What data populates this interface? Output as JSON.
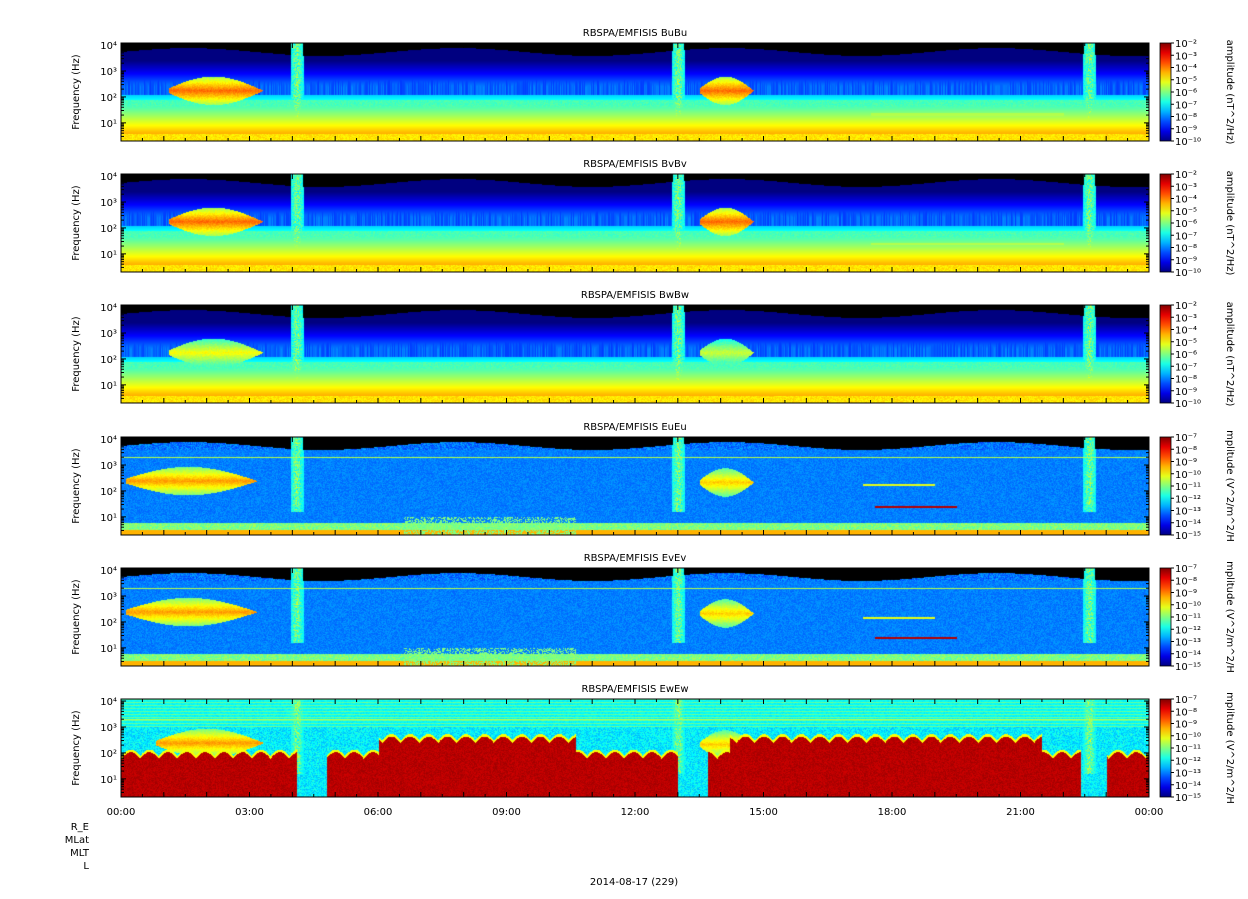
{
  "figure": {
    "date_label": "2014-08-17 (229)",
    "row_labels": [
      "R_E",
      "MLat",
      "MLT",
      "L"
    ]
  },
  "chart_data": [
    {
      "type": "heatmap",
      "title": "RBSPA/EMFISIS  BuBu",
      "ylabel": "Frequency (Hz)",
      "y_scale": "log",
      "ylim": [
        2,
        12000
      ],
      "yticks": [
        10,
        100,
        1000,
        10000
      ],
      "xlim": [
        "00:00",
        "24:00"
      ],
      "xticks": [
        "00:00",
        "03:00",
        "06:00",
        "09:00",
        "12:00",
        "15:00",
        "18:00",
        "21:00",
        "00:00"
      ],
      "colorbar": {
        "label": "amplitude (nT^2/Hz)",
        "scale": "log",
        "range_exp": [
          -10,
          -2
        ],
        "tick_exps": [
          -10,
          -9,
          -8,
          -7,
          -6,
          -5,
          -4,
          -3,
          -2
        ]
      },
      "features": {
        "type": "B",
        "chorus": [
          [
            1.1,
            3.9,
            180,
            0.9
          ],
          [
            13.5,
            15.1,
            180,
            0.9
          ]
        ],
        "bands": [
          [
            17.5,
            22.0,
            22,
            0.55
          ]
        ],
        "spikes": [
          4.1,
          13.0,
          22.6
        ],
        "eline": false,
        "bursts": false,
        "red": false
      }
    },
    {
      "type": "heatmap",
      "title": "RBSPA/EMFISIS  BvBv",
      "ylabel": "Frequency (Hz)",
      "y_scale": "log",
      "ylim": [
        2,
        12000
      ],
      "yticks": [
        10,
        100,
        1000,
        10000
      ],
      "xlim": [
        "00:00",
        "24:00"
      ],
      "xticks": [
        "00:00",
        "03:00",
        "06:00",
        "09:00",
        "12:00",
        "15:00",
        "18:00",
        "21:00",
        "00:00"
      ],
      "colorbar": {
        "label": "amplitude (nT^2/Hz)",
        "scale": "log",
        "range_exp": [
          -10,
          -2
        ],
        "tick_exps": [
          -10,
          -9,
          -8,
          -7,
          -6,
          -5,
          -4,
          -3,
          -2
        ]
      },
      "features": {
        "type": "B",
        "chorus": [
          [
            1.1,
            3.9,
            180,
            0.9
          ],
          [
            13.5,
            15.1,
            180,
            0.9
          ]
        ],
        "bands": [
          [
            17.5,
            22.0,
            25,
            0.55
          ]
        ],
        "spikes": [
          4.1,
          13.0,
          22.6
        ],
        "eline": false,
        "bursts": false,
        "red": false
      }
    },
    {
      "type": "heatmap",
      "title": "RBSPA/EMFISIS  BwBw",
      "ylabel": "Frequency (Hz)",
      "y_scale": "log",
      "ylim": [
        2,
        12000
      ],
      "yticks": [
        10,
        100,
        1000,
        10000
      ],
      "xlim": [
        "00:00",
        "24:00"
      ],
      "xticks": [
        "00:00",
        "03:00",
        "06:00",
        "09:00",
        "12:00",
        "15:00",
        "18:00",
        "21:00",
        "00:00"
      ],
      "colorbar": {
        "label": "amplitude (nT^2/Hz)",
        "scale": "log",
        "range_exp": [
          -10,
          -2
        ],
        "tick_exps": [
          -10,
          -9,
          -8,
          -7,
          -6,
          -5,
          -4,
          -3,
          -2
        ]
      },
      "features": {
        "type": "B",
        "chorus": [
          [
            1.1,
            3.9,
            180,
            0.75
          ],
          [
            13.5,
            15.1,
            180,
            0.7
          ]
        ],
        "bands": [],
        "spikes": [
          4.1,
          13.0,
          22.6
        ],
        "eline": false,
        "bursts": false,
        "red": false
      }
    },
    {
      "type": "heatmap",
      "title": "RBSPA/EMFISIS  EuEu",
      "ylabel": "Frequency (Hz)",
      "y_scale": "log",
      "ylim": [
        2,
        12000
      ],
      "yticks": [
        10,
        100,
        1000,
        10000
      ],
      "xlim": [
        "00:00",
        "24:00"
      ],
      "xticks": [
        "00:00",
        "03:00",
        "06:00",
        "09:00",
        "12:00",
        "15:00",
        "18:00",
        "21:00",
        "00:00"
      ],
      "colorbar": {
        "label": "mplitude (V^2/m^2/H",
        "scale": "log",
        "range_exp": [
          -15,
          -7
        ],
        "tick_exps": [
          -15,
          -14,
          -13,
          -12,
          -11,
          -10,
          -9,
          -8,
          -7
        ]
      },
      "features": {
        "type": "E",
        "chorus": [
          [
            0.1,
            4.0,
            250,
            0.85
          ],
          [
            13.5,
            15.1,
            220,
            0.8
          ]
        ],
        "bands": [
          [
            17.6,
            19.5,
            25,
            0.95
          ],
          [
            17.3,
            19.0,
            180,
            0.6
          ]
        ],
        "spikes": [
          4.1,
          13.0,
          22.6
        ],
        "eline": true,
        "bursts": true,
        "red": false
      }
    },
    {
      "type": "heatmap",
      "title": "RBSPA/EMFISIS  EvEv",
      "ylabel": "Frequency (Hz)",
      "y_scale": "log",
      "ylim": [
        2,
        12000
      ],
      "yticks": [
        10,
        100,
        1000,
        10000
      ],
      "xlim": [
        "00:00",
        "24:00"
      ],
      "xticks": [
        "00:00",
        "03:00",
        "06:00",
        "09:00",
        "12:00",
        "15:00",
        "18:00",
        "21:00",
        "00:00"
      ],
      "colorbar": {
        "label": "mplitude (V^2/m^2/H",
        "scale": "log",
        "range_exp": [
          -15,
          -7
        ],
        "tick_exps": [
          -15,
          -14,
          -13,
          -12,
          -11,
          -10,
          -9,
          -8,
          -7
        ]
      },
      "features": {
        "type": "E",
        "chorus": [
          [
            0.1,
            4.0,
            250,
            0.85
          ],
          [
            13.5,
            15.1,
            220,
            0.8
          ]
        ],
        "bands": [
          [
            17.6,
            19.5,
            25,
            0.95
          ],
          [
            17.3,
            19.0,
            150,
            0.6
          ]
        ],
        "spikes": [
          4.1,
          13.0,
          22.6
        ],
        "eline": true,
        "bursts": true,
        "red": false
      }
    },
    {
      "type": "heatmap",
      "title": "RBSPA/EMFISIS  EwEw",
      "ylabel": "Frequency (Hz)",
      "y_scale": "log",
      "ylim": [
        2,
        12000
      ],
      "yticks": [
        10,
        100,
        1000,
        10000
      ],
      "xlim": [
        "00:00",
        "24:00"
      ],
      "xticks": [
        "00:00",
        "03:00",
        "06:00",
        "09:00",
        "12:00",
        "15:00",
        "18:00",
        "21:00",
        "00:00"
      ],
      "colorbar": {
        "label": "mplitude (V^2/m^2/H",
        "scale": "log",
        "range_exp": [
          -15,
          -7
        ],
        "tick_exps": [
          -15,
          -14,
          -13,
          -12,
          -11,
          -10,
          -9,
          -8,
          -7
        ]
      },
      "features": {
        "type": "Ew",
        "chorus": [
          [
            0.8,
            4.0,
            250,
            0.85
          ],
          [
            13.5,
            15.1,
            220,
            0.8
          ]
        ],
        "bands": [],
        "spikes": [
          4.1,
          13.0,
          22.6
        ],
        "eline": true,
        "bursts": false,
        "red": true,
        "red_gaps": [
          [
            4.1,
            4.8
          ],
          [
            13.0,
            13.7
          ],
          [
            22.4,
            23.0
          ]
        ]
      }
    }
  ]
}
